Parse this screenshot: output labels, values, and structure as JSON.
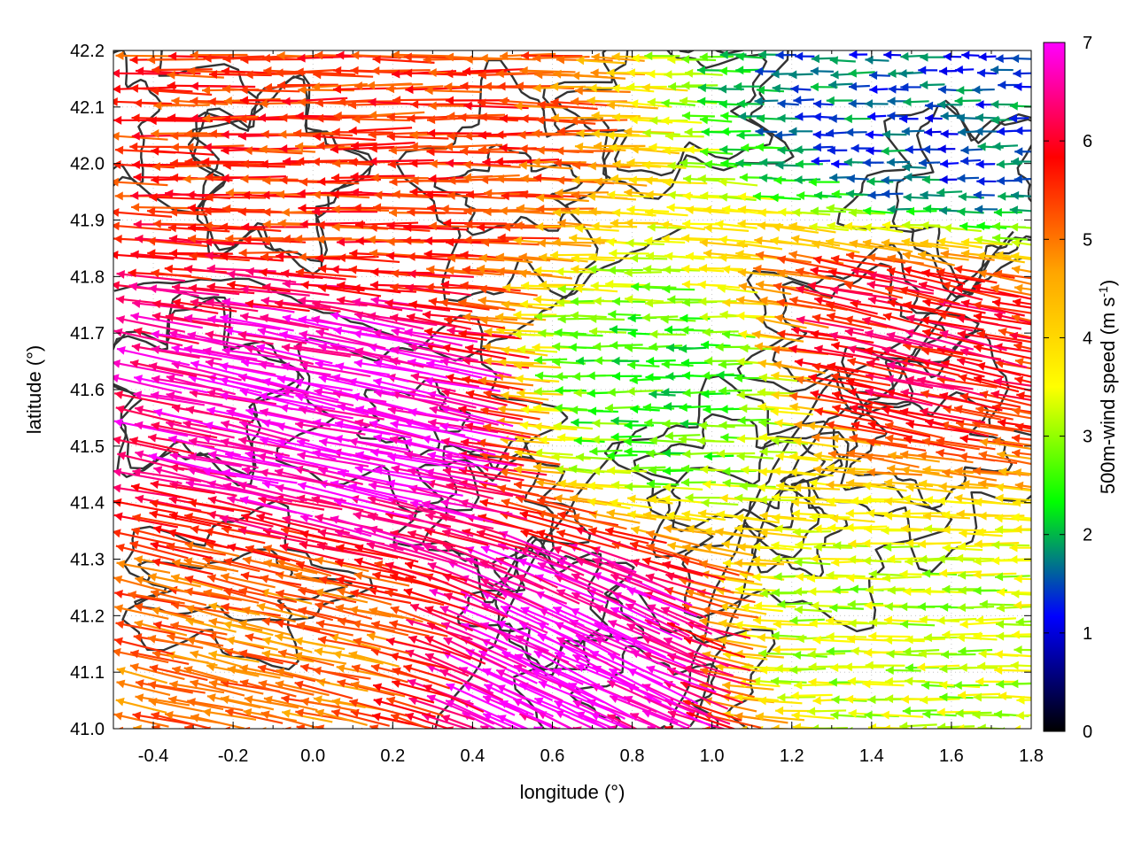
{
  "chart_data": {
    "type": "vector-field",
    "xlabel": "longitude (°)",
    "ylabel": "latitude (°)",
    "xlim": [
      -0.5,
      1.8
    ],
    "ylim": [
      41.0,
      42.2
    ],
    "xticks": [
      -0.4,
      -0.2,
      0.0,
      0.2,
      0.4,
      0.6,
      0.8,
      1.0,
      1.2,
      1.4,
      1.6,
      1.8
    ],
    "xtick_labels": [
      "-0.4",
      "-0.2",
      "0.0",
      "0.2",
      "0.4",
      "0.6",
      "0.8",
      "1.0",
      "1.2",
      "1.4",
      "1.6",
      "1.8"
    ],
    "yticks": [
      41.0,
      41.1,
      41.2,
      41.3,
      41.4,
      41.5,
      41.6,
      41.7,
      41.8,
      41.9,
      42.0,
      42.1,
      42.2
    ],
    "ytick_labels": [
      "41.0",
      "41.1",
      "41.2",
      "41.3",
      "41.4",
      "41.5",
      "41.6",
      "41.7",
      "41.8",
      "41.9",
      "42.0",
      "42.1",
      "42.2"
    ],
    "grid": true,
    "colorbar": {
      "label_main": "500m-wind speed (m s",
      "label_sup": "-1",
      "label_end": ")",
      "range": [
        0,
        7
      ],
      "ticks": [
        0,
        1,
        2,
        3,
        4,
        5,
        6,
        7
      ],
      "tick_labels": [
        "0",
        "1",
        "2",
        "3",
        "4",
        "5",
        "6",
        "7"
      ],
      "palette": [
        "#000000",
        "#0000ff",
        "#00ff00",
        "#ffff00",
        "#ffa500",
        "#ff0000",
        "#ff00ff"
      ]
    },
    "wind_regimes": [
      {
        "region": "northwest",
        "lon": [
          -0.5,
          0.7
        ],
        "lat": [
          41.8,
          42.2
        ],
        "speed": 5.5,
        "direction": "from east"
      },
      {
        "region": "west-central",
        "lon": [
          -0.5,
          0.6
        ],
        "lat": [
          41.3,
          41.8
        ],
        "speed": 7.0,
        "direction": "from east-southeast"
      },
      {
        "region": "southwest",
        "lon": [
          -0.5,
          0.3
        ],
        "lat": [
          41.0,
          41.3
        ],
        "speed": 5.0,
        "direction": "from east-southeast"
      },
      {
        "region": "south-central",
        "lon": [
          0.3,
          0.8
        ],
        "lat": [
          41.0,
          41.3
        ],
        "speed": 7.0,
        "direction": "from southeast"
      },
      {
        "region": "center",
        "lon": [
          0.6,
          1.1
        ],
        "lat": [
          41.45,
          41.75
        ],
        "speed": 2.5,
        "direction": "from east"
      },
      {
        "region": "east",
        "lon": [
          1.0,
          1.8
        ],
        "lat": [
          41.5,
          41.9
        ],
        "speed": 6.0,
        "direction": "from east-southeast"
      },
      {
        "region": "northeast",
        "lon": [
          1.2,
          1.8
        ],
        "lat": [
          41.9,
          42.2
        ],
        "speed": 1.5,
        "direction": "from east"
      },
      {
        "region": "southeast",
        "lon": [
          1.0,
          1.8
        ],
        "lat": [
          41.0,
          41.35
        ],
        "speed": 3.2,
        "direction": "from east"
      }
    ],
    "contour_lines": "dark grey terrain contours"
  }
}
